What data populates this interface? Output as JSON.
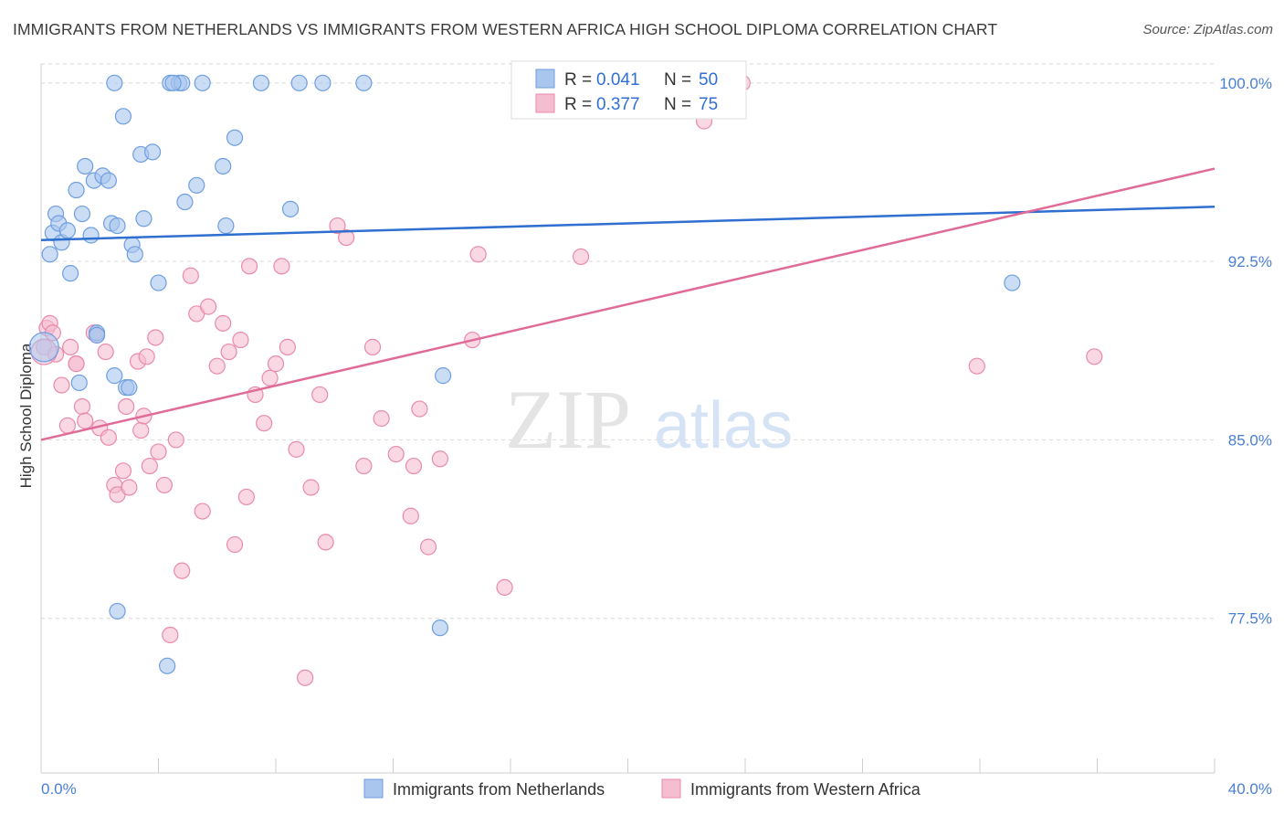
{
  "title": "IMMIGRANTS FROM NETHERLANDS VS IMMIGRANTS FROM WESTERN AFRICA HIGH SCHOOL DIPLOMA CORRELATION CHART",
  "source": "Source: ZipAtlas.com",
  "watermark": {
    "zip": "ZIP",
    "atlas": "atlas"
  },
  "legend": {
    "r_label": "R =",
    "n_label": "N =",
    "rows": [
      {
        "r": "0.041",
        "n": "50"
      },
      {
        "r": "0.377",
        "n": "75"
      }
    ]
  },
  "colors": {
    "blue_fill": "#a9c6ef",
    "blue_stroke": "#6f9ee0",
    "blue_line": "#2f6fd0",
    "pink_fill": "#f5bdd0",
    "pink_stroke": "#e98aac",
    "pink_line": "#e06a98"
  },
  "chart_data": {
    "type": "scatter",
    "title": "IMMIGRANTS FROM NETHERLANDS VS IMMIGRANTS FROM WESTERN AFRICA HIGH SCHOOL DIPLOMA CORRELATION CHART",
    "xlabel": "",
    "ylabel": "High School Diploma",
    "xlim": [
      0,
      40
    ],
    "ylim": [
      71.0,
      100.8
    ],
    "x_tick_labels": [
      "0.0%",
      "40.0%"
    ],
    "y_ticks": [
      77.5,
      85.0,
      92.5,
      100.0
    ],
    "y_tick_labels": [
      "77.5%",
      "85.0%",
      "92.5%",
      "100.0%"
    ],
    "grid": true,
    "legend_position": "top-center",
    "series": [
      {
        "name": "Immigrants from Netherlands",
        "r": 0.041,
        "n": 50,
        "trend": {
          "x": [
            0,
            40
          ],
          "y": [
            93.4,
            94.8
          ]
        },
        "x": [
          0.3,
          0.4,
          0.5,
          0.6,
          0.7,
          0.9,
          1.0,
          1.2,
          1.4,
          1.5,
          1.7,
          1.8,
          1.9,
          2.1,
          2.3,
          2.4,
          2.5,
          2.6,
          2.8,
          2.9,
          3.1,
          3.2,
          3.4,
          3.5,
          3.8,
          4.0,
          4.3,
          4.4,
          4.7,
          4.8,
          4.9,
          5.3,
          5.5,
          6.2,
          6.3,
          6.6,
          7.5,
          8.5,
          8.8,
          9.6,
          11.0,
          1.3,
          1.9,
          2.6,
          3.0,
          2.5,
          4.5,
          13.7,
          13.6,
          33.1
        ],
        "y": [
          92.8,
          93.7,
          94.5,
          94.1,
          93.3,
          93.8,
          92.0,
          95.5,
          94.5,
          96.5,
          93.6,
          95.9,
          89.5,
          96.1,
          95.9,
          94.1,
          87.7,
          94.0,
          98.6,
          87.2,
          93.2,
          92.8,
          97.0,
          94.3,
          97.1,
          91.6,
          75.5,
          100.0,
          100.0,
          100.0,
          95.0,
          95.7,
          100.0,
          96.5,
          94.0,
          97.7,
          100.0,
          94.7,
          100.0,
          100.0,
          100.0,
          87.4,
          89.4,
          77.8,
          87.2,
          100.0,
          100.0,
          87.7,
          77.1,
          91.6
        ]
      },
      {
        "name": "Immigrants from Western Africa",
        "r": 0.377,
        "n": 75,
        "trend": {
          "x": [
            0,
            40
          ],
          "y": [
            85.0,
            96.4
          ]
        },
        "x": [
          0.1,
          0.2,
          0.3,
          0.4,
          0.5,
          0.7,
          0.9,
          1.0,
          1.2,
          1.4,
          1.5,
          1.8,
          1.9,
          2.0,
          2.2,
          2.3,
          2.5,
          2.6,
          2.8,
          2.9,
          3.0,
          3.3,
          3.4,
          3.5,
          3.7,
          3.9,
          4.0,
          4.2,
          4.4,
          4.6,
          4.8,
          5.1,
          5.3,
          5.5,
          5.7,
          6.0,
          6.2,
          6.4,
          6.6,
          6.8,
          7.0,
          7.1,
          7.3,
          7.6,
          7.8,
          8.0,
          8.2,
          8.4,
          8.7,
          9.0,
          9.2,
          9.5,
          9.7,
          10.1,
          10.4,
          11.0,
          11.3,
          11.6,
          12.1,
          12.6,
          12.7,
          12.9,
          13.2,
          13.6,
          14.7,
          14.9,
          15.8,
          18.4,
          21.2,
          22.6,
          23.9,
          31.9,
          35.9,
          1.2,
          3.6
        ],
        "y": [
          88.9,
          89.7,
          89.9,
          89.5,
          88.6,
          87.3,
          85.6,
          88.9,
          88.2,
          86.4,
          85.8,
          89.5,
          89.4,
          85.5,
          88.7,
          85.1,
          83.1,
          82.7,
          83.7,
          86.4,
          83.0,
          88.3,
          85.4,
          86.0,
          83.9,
          89.3,
          84.5,
          83.1,
          76.8,
          85.0,
          79.5,
          91.9,
          90.3,
          82.0,
          90.6,
          88.1,
          89.9,
          88.7,
          80.6,
          89.2,
          82.6,
          92.3,
          86.9,
          85.7,
          87.6,
          88.2,
          92.3,
          88.9,
          84.6,
          75.0,
          83.0,
          86.9,
          80.7,
          94.0,
          93.5,
          83.9,
          88.9,
          85.9,
          84.4,
          81.8,
          83.9,
          86.3,
          80.5,
          84.2,
          89.2,
          92.8,
          78.8,
          92.7,
          100.0,
          98.4,
          100.0,
          88.1,
          88.5,
          88.2,
          88.5
        ]
      }
    ]
  },
  "bottom_legend": {
    "blue": "Immigrants from Netherlands",
    "pink": "Immigrants from Western Africa"
  }
}
